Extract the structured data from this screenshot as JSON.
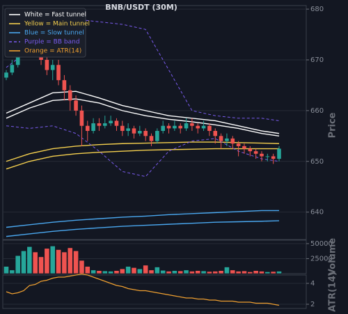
{
  "chart_data": [
    {
      "type": "candlestick",
      "title": "BNB/USDT (30M)",
      "ylabel": "Price",
      "ylim": [
        634.6,
        680.7
      ],
      "yticks": [
        640,
        650,
        660,
        670,
        680
      ],
      "grid": true,
      "up_color": "#26a69a",
      "down_color": "#ef5350",
      "legend": "upper left",
      "open": [
        666.5,
        667.5,
        669,
        671,
        673,
        674,
        672,
        670,
        668,
        669,
        666,
        664,
        662,
        660,
        657,
        656,
        657.5,
        657,
        657.5,
        658,
        657,
        656,
        656.5,
        655.5,
        656,
        655,
        654,
        656,
        657,
        656.5,
        657,
        656.5,
        657.5,
        657,
        656.5,
        657,
        656,
        655,
        654,
        654.5,
        653.5,
        653,
        652.5,
        652,
        651.5,
        651,
        651,
        650.5
      ],
      "high": [
        668,
        670,
        672,
        675,
        676,
        675,
        673,
        671,
        670,
        670,
        667,
        665,
        663,
        661,
        658,
        658.5,
        658.5,
        659,
        659,
        658.5,
        658,
        657.5,
        657,
        657,
        656.5,
        655.5,
        656.5,
        658,
        657.5,
        658,
        657.5,
        658.5,
        658.5,
        657.5,
        658,
        657.5,
        656.5,
        655.5,
        655.5,
        655,
        654,
        653.5,
        653,
        652.5,
        652,
        651.5,
        651.5,
        653
      ],
      "low": [
        666,
        667,
        668.5,
        670.5,
        672,
        671,
        669,
        667,
        666,
        665,
        662,
        660,
        659,
        653,
        654,
        655.5,
        656,
        656.5,
        657,
        656,
        655,
        655,
        654.5,
        655,
        654,
        653,
        653.5,
        655.5,
        655.5,
        656,
        655.5,
        656,
        656,
        655.5,
        656,
        655,
        653.5,
        652.5,
        653,
        652.5,
        651,
        651.5,
        651,
        650.5,
        650,
        650,
        649.5,
        650
      ],
      "close": [
        667.5,
        669,
        671,
        673,
        674,
        672,
        670,
        668,
        669,
        666,
        664,
        662,
        660,
        657,
        656,
        657.5,
        657,
        657.5,
        658,
        657,
        656,
        656.5,
        655.5,
        656,
        655,
        654,
        656,
        657,
        656.5,
        657,
        656.5,
        657.5,
        657,
        656.5,
        657,
        656,
        655,
        654,
        654.5,
        653.5,
        653,
        652.5,
        652,
        651.5,
        651,
        651,
        650.5,
        652.5
      ],
      "overlay_x": [
        0,
        4,
        8,
        12,
        16,
        20,
        24,
        28,
        32,
        36,
        40,
        44,
        47
      ],
      "overlays": [
        {
          "name": "White = Fast tunnel",
          "color": "#ffffff",
          "dashed": false,
          "upper": [
            659.5,
            661.5,
            663.5,
            663.8,
            662.5,
            661,
            660,
            659,
            658.5,
            658,
            657,
            656,
            655.5
          ],
          "lower": [
            658.5,
            660.5,
            662,
            662.3,
            661.5,
            660,
            659,
            658.3,
            657.8,
            657.2,
            656.5,
            655.5,
            655
          ]
        },
        {
          "name": "Yellow = Main tunnel",
          "color": "#f5d04e",
          "dashed": false,
          "upper": [
            650,
            651.5,
            652.5,
            653,
            653.3,
            653.5,
            653.6,
            653.7,
            653.8,
            653.8,
            653.7,
            653.6,
            653.5
          ],
          "lower": [
            648.5,
            650,
            651,
            651.5,
            651.8,
            652,
            652.2,
            652.3,
            652.4,
            652.5,
            652.5,
            652.5,
            652.5
          ]
        },
        {
          "name": "Blue = Slow tunnel",
          "color": "#4aa8f0",
          "dashed": false,
          "upper": [
            637,
            637.5,
            638,
            638.4,
            638.7,
            639,
            639.2,
            639.5,
            639.7,
            639.9,
            640.1,
            640.3,
            640.3
          ],
          "lower": [
            635.2,
            635.7,
            636.2,
            636.6,
            636.9,
            637.2,
            637.4,
            637.6,
            637.8,
            638,
            638.1,
            638.2,
            638.3
          ]
        },
        {
          "name": "Purple = BB band",
          "color": "#7b5cf0",
          "dashed": true,
          "upper": [
            668.5,
            672,
            677,
            678,
            677.5,
            677,
            676,
            668,
            660,
            659,
            658.5,
            658.5,
            658
          ],
          "lower": [
            657,
            656.5,
            657,
            655.5,
            652,
            648,
            647,
            652,
            654,
            654.5,
            652,
            650.5,
            650
          ]
        }
      ]
    },
    {
      "type": "bar",
      "ylabel": "Volume",
      "ylim": [
        0,
        55700
      ],
      "yticks": [
        25000,
        50000
      ],
      "grid": true,
      "values": [
        12000,
        6000,
        30000,
        38000,
        45000,
        36000,
        28000,
        42000,
        46000,
        40000,
        36000,
        43000,
        38000,
        22000,
        12000,
        6000,
        5000,
        4500,
        4000,
        5000,
        8000,
        12000,
        10000,
        8000,
        14000,
        6000,
        11000,
        5500,
        4000,
        5000,
        4500,
        6000,
        4000,
        5000,
        4500,
        3500,
        4000,
        5000,
        11000,
        6000,
        4000,
        4500,
        3000,
        5000,
        4000,
        3000,
        3500,
        4000
      ]
    },
    {
      "type": "line",
      "ylabel": "ATR(14)",
      "ylim": [
        1.6,
        4.8
      ],
      "yticks": [
        2,
        4
      ],
      "grid": true,
      "series": [
        {
          "name": "Orange = ATR(14)",
          "color": "#f0a030",
          "values": [
            3.2,
            3.0,
            3.1,
            3.3,
            3.8,
            3.9,
            4.2,
            4.3,
            4.5,
            4.6,
            4.6,
            4.7,
            4.8,
            4.9,
            4.8,
            4.6,
            4.4,
            4.2,
            4.0,
            3.8,
            3.7,
            3.5,
            3.4,
            3.3,
            3.3,
            3.2,
            3.1,
            3.0,
            2.9,
            2.8,
            2.7,
            2.6,
            2.6,
            2.5,
            2.5,
            2.4,
            2.4,
            2.3,
            2.3,
            2.3,
            2.2,
            2.2,
            2.2,
            2.1,
            2.1,
            2.1,
            2.0,
            1.9
          ]
        }
      ]
    }
  ]
}
